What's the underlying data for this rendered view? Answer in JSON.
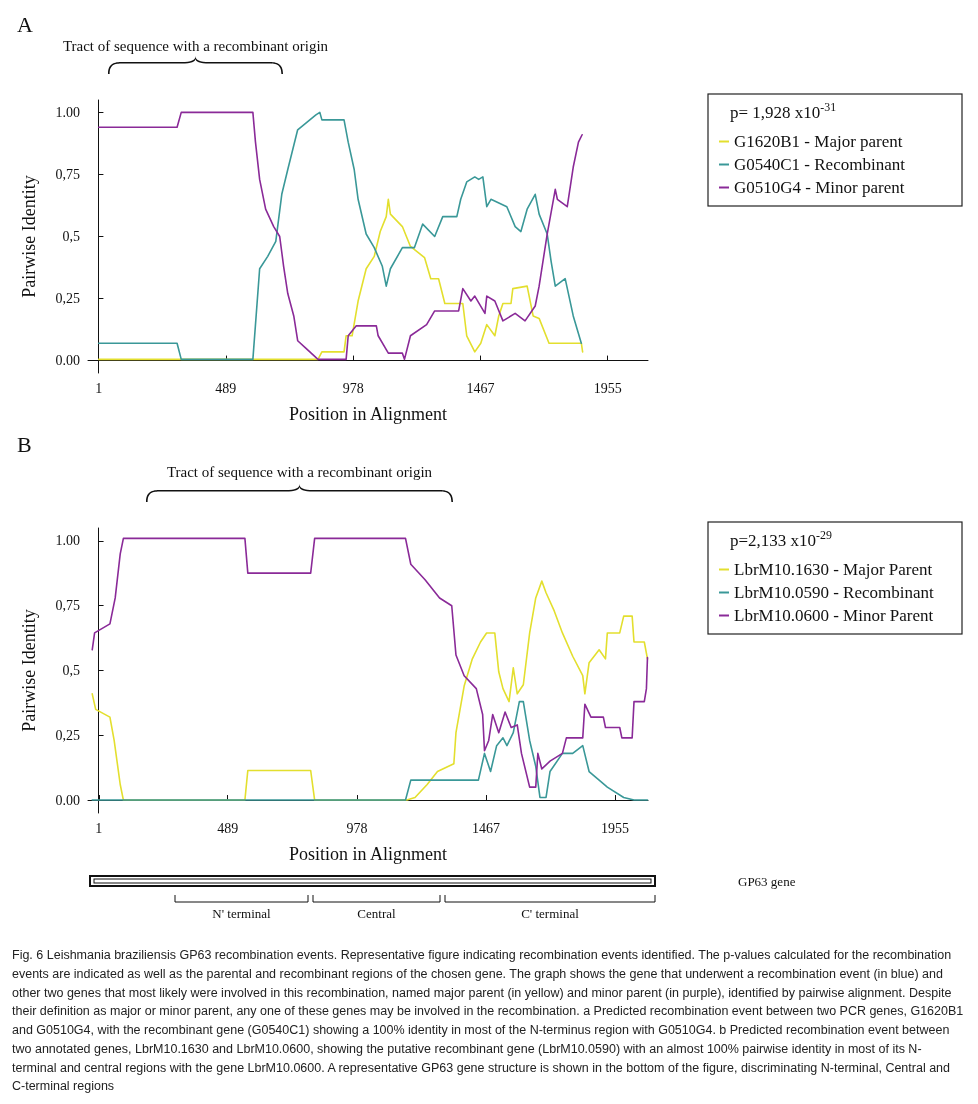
{
  "chart_data": [
    {
      "type": "line",
      "title": "A",
      "xlabel": "Position in Alignment",
      "ylabel": "Pairwise Identity",
      "legend_title": "p= 1,928 x10$^{-31}$",
      "legend": "right",
      "marker": "none",
      "annotations": [
        "Tract of sequence with a recombinant origin"
      ],
      "xlim": [
        -40,
        2110
      ],
      "xticks": [
        1,
        489,
        978,
        1467,
        1955
      ],
      "ylim": [
        -0.05,
        1.05
      ],
      "yticks": [
        {
          "value": 0,
          "label": "0.00"
        },
        {
          "value": 0.25,
          "label": "0,25"
        },
        {
          "value": 0.5,
          "label": "0,5"
        },
        {
          "value": 0.75,
          "label": "0,75"
        },
        {
          "value": 1,
          "label": "1.00"
        }
      ],
      "series": [
        {
          "name": "G1620B1 - Major parent",
          "color": "#e3df2e",
          "x": [
            1,
            843,
            858,
            943,
            951,
            974,
            997,
            1028,
            1059,
            1082,
            1105,
            1113,
            1121,
            1167,
            1198,
            1252,
            1276,
            1306,
            1330,
            1399,
            1414,
            1445,
            1468,
            1491,
            1522,
            1537,
            1553,
            1584,
            1591,
            1646,
            1669,
            1692,
            1730,
            1854,
            1859
          ],
          "values": [
            0.005,
            0.005,
            0.035,
            0.035,
            0.1,
            0.1,
            0.24,
            0.37,
            0.42,
            0.52,
            0.58,
            0.65,
            0.59,
            0.54,
            0.46,
            0.415,
            0.33,
            0.33,
            0.23,
            0.23,
            0.1,
            0.035,
            0.07,
            0.145,
            0.1,
            0.18,
            0.23,
            0.23,
            0.29,
            0.3,
            0.18,
            0.17,
            0.07,
            0.07,
            0.035
          ]
        },
        {
          "name": "G0540C1 - Recombinant",
          "color": "#3a9898",
          "x": [
            1,
            302,
            318,
            593,
            603,
            619,
            650,
            681,
            704,
            727,
            765,
            835,
            850,
            858,
            943,
            959,
            982,
            997,
            1028,
            1059,
            1090,
            1105,
            1121,
            1167,
            1213,
            1245,
            1291,
            1322,
            1376,
            1391,
            1414,
            1445,
            1460,
            1476,
            1491,
            1507,
            1568,
            1600,
            1622,
            1646,
            1677,
            1692,
            1723,
            1738,
            1754,
            1792,
            1823,
            1854
          ],
          "values": [
            0.07,
            0.07,
            0.005,
            0.005,
            0.145,
            0.37,
            0.42,
            0.48,
            0.67,
            0.77,
            0.93,
            0.99,
            1.0,
            0.97,
            0.97,
            0.88,
            0.77,
            0.65,
            0.51,
            0.455,
            0.38,
            0.3,
            0.37,
            0.455,
            0.455,
            0.55,
            0.5,
            0.58,
            0.58,
            0.65,
            0.72,
            0.74,
            0.73,
            0.74,
            0.62,
            0.65,
            0.62,
            0.54,
            0.52,
            0.61,
            0.67,
            0.59,
            0.51,
            0.4,
            0.3,
            0.33,
            0.18,
            0.07
          ]
        },
        {
          "name": "G0510G4 - Minor parent",
          "color": "#8a2a98",
          "x": [
            1,
            302,
            318,
            593,
            603,
            619,
            642,
            673,
            696,
            711,
            727,
            750,
            765,
            796,
            843,
            951,
            959,
            990,
            1067,
            1074,
            1113,
            1167,
            1175,
            1198,
            1260,
            1291,
            1383,
            1399,
            1430,
            1445,
            1484,
            1491,
            1522,
            1553,
            1600,
            1638,
            1677,
            1692,
            1723,
            1754,
            1762,
            1800,
            1823,
            1843,
            1857
          ],
          "values": [
            0.94,
            0.94,
            1.0,
            1.0,
            0.88,
            0.73,
            0.61,
            0.54,
            0.5,
            0.38,
            0.27,
            0.18,
            0.08,
            0.05,
            0.005,
            0.005,
            0.1,
            0.14,
            0.14,
            0.1,
            0.03,
            0.03,
            0.005,
            0.1,
            0.145,
            0.2,
            0.2,
            0.29,
            0.24,
            0.26,
            0.19,
            0.26,
            0.24,
            0.16,
            0.19,
            0.16,
            0.22,
            0.3,
            0.51,
            0.69,
            0.65,
            0.62,
            0.78,
            0.88,
            0.91
          ]
        }
      ]
    },
    {
      "type": "line",
      "title": "B",
      "xlabel": "Position in Alignment",
      "ylabel": "Pairwise Identity",
      "legend_title": "p=2,133 x10$^{-29}$",
      "legend": "right",
      "marker": "none",
      "annotations": [
        "Tract of sequence with a recombinant origin",
        "GP63 gene",
        "N' terminal",
        "Central",
        "C' terminal",
        "Fig. 6 Leishmania braziliensis GP63 recombination events. Representative figure indicating recombination events identified. The p-values calculated for the recombination events are indicated as well as the parental and recombinant regions of the chosen gene. The graph shows the gene that underwent a recombination event (in blue) and other two genes that most likely were involved in this recombination, named major parent (in yellow) and minor parent (in purple), identified by pairwise alignment. Despite their definition as major or minor parent, any one of these genes may be involved in the recombination. a Predicted recombination event between two PCR genes, G1620B1 and G0510G4, with the recombinant gene (G0540C1) showing a 100% identity in most of the N-terminus region with G0510G4. b Predicted recombination event between two annotated genes, LbrM10.1630 and LbrM10.0600, showing the putative recombinant gene (LbrM10.0590) with an almost 100% pairwise identity in most of its N-terminal and central regions with the gene LbrM10.0600. A representative GP63 gene structure is shown in the bottom of the figure, discriminating N-terminal, Central and C-terminal regions"
      ],
      "xlim": [
        -40,
        2080
      ],
      "xticks": [
        1,
        489,
        978,
        1467,
        1955
      ],
      "ylim": [
        -0.05,
        1.05
      ],
      "yticks": [
        {
          "value": 0,
          "label": "0.00"
        },
        {
          "value": 0.25,
          "label": "0,25"
        },
        {
          "value": 0.5,
          "label": "0,5"
        },
        {
          "value": 0.75,
          "label": "0,75"
        },
        {
          "value": 1,
          "label": "1.00"
        }
      ],
      "series": [
        {
          "name": "LbrM10.1630 - Major Parent",
          "color": "#e3df2e",
          "x": [
            -24,
            -11,
            43,
            59,
            82,
            94,
            554,
            565,
            803,
            818,
            1167,
            1198,
            1244,
            1283,
            1345,
            1353,
            1384,
            1415,
            1446,
            1469,
            1500,
            1515,
            1531,
            1554,
            1570,
            1585,
            1608,
            1632,
            1655,
            1678,
            1694,
            1725,
            1756,
            1795,
            1833,
            1841,
            1857,
            1895,
            1919,
            1926,
            1973,
            1988,
            2020,
            2027,
            2066,
            2078
          ],
          "values": [
            0.41,
            0.35,
            0.32,
            0.23,
            0.06,
            0,
            0,
            0.114,
            0.114,
            0,
            0,
            0.01,
            0.06,
            0.11,
            0.14,
            0.26,
            0.44,
            0.545,
            0.61,
            0.645,
            0.645,
            0.495,
            0.43,
            0.38,
            0.51,
            0.41,
            0.445,
            0.645,
            0.78,
            0.845,
            0.8,
            0.73,
            0.645,
            0.555,
            0.48,
            0.41,
            0.53,
            0.58,
            0.545,
            0.645,
            0.645,
            0.71,
            0.71,
            0.61,
            0.61,
            0.545
          ]
        },
        {
          "name": "LbrM10.0590 - Recombinant",
          "color": "#3a9898",
          "x": [
            -24,
            1162,
            1182,
            1438,
            1461,
            1484,
            1507,
            1531,
            1546,
            1570,
            1593,
            1608,
            1632,
            1655,
            1671,
            1694,
            1709,
            1756,
            1795,
            1833,
            1857,
            1895,
            1926,
            1988,
            2027,
            2078
          ],
          "values": [
            0,
            0,
            0.077,
            0.077,
            0.18,
            0.11,
            0.21,
            0.24,
            0.21,
            0.26,
            0.38,
            0.38,
            0.23,
            0.13,
            0.01,
            0.01,
            0.11,
            0.18,
            0.18,
            0.21,
            0.11,
            0.077,
            0.05,
            0.01,
            0,
            0
          ]
        },
        {
          "name": "LbrM10.0600 - Minor Parent",
          "color": "#8a2a98",
          "x": [
            -24,
            -15,
            43,
            63,
            82,
            94,
            554,
            565,
            803,
            818,
            1162,
            1182,
            1236,
            1291,
            1337,
            1353,
            1384,
            1430,
            1454,
            1461,
            1477,
            1492,
            1515,
            1539,
            1562,
            1585,
            1601,
            1632,
            1655,
            1663,
            1678,
            1709,
            1756,
            1771,
            1833,
            1841,
            1864,
            1911,
            1919,
            1973,
            1981,
            2020,
            2027,
            2066,
            2074,
            2078
          ],
          "values": [
            0.58,
            0.645,
            0.68,
            0.78,
            0.95,
            1.01,
            1.01,
            0.876,
            0.876,
            1.01,
            1.01,
            0.91,
            0.85,
            0.78,
            0.75,
            0.56,
            0.48,
            0.43,
            0.33,
            0.19,
            0.23,
            0.33,
            0.26,
            0.34,
            0.28,
            0.29,
            0.18,
            0.05,
            0.05,
            0.18,
            0.12,
            0.15,
            0.18,
            0.24,
            0.24,
            0.37,
            0.32,
            0.32,
            0.28,
            0.28,
            0.24,
            0.24,
            0.38,
            0.38,
            0.43,
            0.55
          ]
        }
      ]
    }
  ]
}
